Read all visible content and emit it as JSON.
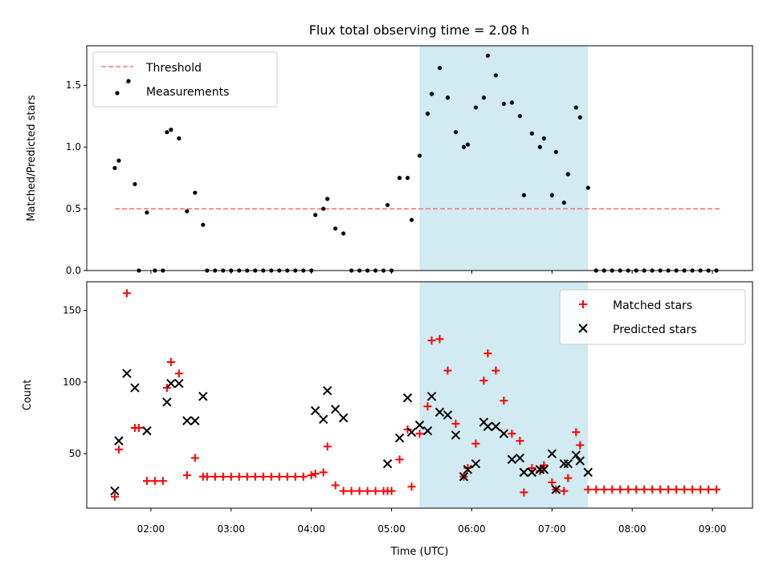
{
  "chart_data": [
    {
      "type": "scatter",
      "title": "Flux total observing time = 2.08 h",
      "xlabel": "",
      "ylabel": "Matched/Predicted stars",
      "xlim": [
        "01:12",
        "09:30"
      ],
      "ylim": [
        0,
        1.82
      ],
      "yticks": [
        0.0,
        0.5,
        1.0,
        1.5
      ],
      "ytick_labels": [
        "0.0",
        "0.5",
        "1.0",
        "1.5"
      ],
      "legend": {
        "placement": "upper-left",
        "entries": [
          "Threshold",
          "Measurements"
        ]
      },
      "threshold": {
        "name": "Threshold",
        "value": 0.5,
        "x_start": "01:33",
        "x_end": "09:06",
        "color": "#ff7777",
        "style": "dashed"
      },
      "highlight_span": {
        "x_start": "05:21",
        "x_end": "07:27",
        "color": "#add8e6"
      },
      "series": [
        {
          "name": "Measurements",
          "color": "#000000",
          "marker": "dot",
          "points": [
            [
              "01:33",
              0.83
            ],
            [
              "01:36",
              0.89
            ],
            [
              "01:42",
              1.52
            ],
            [
              "01:48",
              0.7
            ],
            [
              "01:51",
              0.0
            ],
            [
              "01:57",
              0.47
            ],
            [
              "02:03",
              0.0
            ],
            [
              "02:09",
              0.0
            ],
            [
              "02:12",
              1.12
            ],
            [
              "02:15",
              1.14
            ],
            [
              "02:21",
              1.07
            ],
            [
              "02:27",
              0.48
            ],
            [
              "02:33",
              0.63
            ],
            [
              "02:39",
              0.37
            ],
            [
              "02:42",
              0.0
            ],
            [
              "02:48",
              0.0
            ],
            [
              "02:54",
              0.0
            ],
            [
              "03:00",
              0.0
            ],
            [
              "03:06",
              0.0
            ],
            [
              "03:12",
              0.0
            ],
            [
              "03:18",
              0.0
            ],
            [
              "03:24",
              0.0
            ],
            [
              "03:30",
              0.0
            ],
            [
              "03:36",
              0.0
            ],
            [
              "03:42",
              0.0
            ],
            [
              "03:48",
              0.0
            ],
            [
              "03:54",
              0.0
            ],
            [
              "04:00",
              0.0
            ],
            [
              "04:03",
              0.45
            ],
            [
              "04:09",
              0.5
            ],
            [
              "04:12",
              0.58
            ],
            [
              "04:18",
              0.34
            ],
            [
              "04:24",
              0.3
            ],
            [
              "04:30",
              0.0
            ],
            [
              "04:36",
              0.0
            ],
            [
              "04:42",
              0.0
            ],
            [
              "04:48",
              0.0
            ],
            [
              "04:54",
              0.0
            ],
            [
              "04:57",
              0.53
            ],
            [
              "05:00",
              0.0
            ],
            [
              "05:06",
              0.75
            ],
            [
              "05:12",
              0.75
            ],
            [
              "05:15",
              0.41
            ],
            [
              "05:21",
              0.93
            ],
            [
              "05:27",
              1.27
            ],
            [
              "05:30",
              1.43
            ],
            [
              "05:36",
              1.64
            ],
            [
              "05:42",
              1.4
            ],
            [
              "05:48",
              1.12
            ],
            [
              "05:54",
              1.0
            ],
            [
              "05:57",
              1.02
            ],
            [
              "06:03",
              1.32
            ],
            [
              "06:09",
              1.4
            ],
            [
              "06:12",
              1.74
            ],
            [
              "06:18",
              1.58
            ],
            [
              "06:24",
              1.35
            ],
            [
              "06:30",
              1.36
            ],
            [
              "06:36",
              1.25
            ],
            [
              "06:39",
              0.61
            ],
            [
              "06:45",
              1.11
            ],
            [
              "06:51",
              1.0
            ],
            [
              "06:54",
              1.07
            ],
            [
              "07:00",
              0.61
            ],
            [
              "07:03",
              0.96
            ],
            [
              "07:09",
              0.55
            ],
            [
              "07:12",
              0.78
            ],
            [
              "07:18",
              1.32
            ],
            [
              "07:21",
              1.24
            ],
            [
              "07:27",
              0.67
            ],
            [
              "07:33",
              0.0
            ],
            [
              "07:39",
              0.0
            ],
            [
              "07:45",
              0.0
            ],
            [
              "07:51",
              0.0
            ],
            [
              "07:57",
              0.0
            ],
            [
              "08:03",
              0.0
            ],
            [
              "08:09",
              0.0
            ],
            [
              "08:15",
              0.0
            ],
            [
              "08:21",
              0.0
            ],
            [
              "08:27",
              0.0
            ],
            [
              "08:33",
              0.0
            ],
            [
              "08:39",
              0.0
            ],
            [
              "08:45",
              0.0
            ],
            [
              "08:51",
              0.0
            ],
            [
              "08:57",
              0.0
            ],
            [
              "09:03",
              0.0
            ]
          ]
        }
      ]
    },
    {
      "type": "scatter",
      "title": "",
      "xlabel": "Time (UTC)",
      "ylabel": "Count",
      "xlim": [
        "01:12",
        "09:30"
      ],
      "ylim": [
        12,
        170
      ],
      "yticks": [
        50,
        100,
        150
      ],
      "ytick_labels": [
        "50",
        "100",
        "150"
      ],
      "xticks": [
        "02:00",
        "03:00",
        "04:00",
        "05:00",
        "06:00",
        "07:00",
        "08:00",
        "09:00"
      ],
      "legend": {
        "placement": "upper-right",
        "entries": [
          "Matched stars",
          "Predicted stars"
        ]
      },
      "highlight_span": {
        "x_start": "05:21",
        "x_end": "07:27",
        "color": "#add8e6"
      },
      "series": [
        {
          "name": "Matched stars",
          "color": "#ff0000",
          "marker": "plus",
          "points": [
            [
              "01:33",
              20
            ],
            [
              "01:36",
              53
            ],
            [
              "01:42",
              162
            ],
            [
              "01:48",
              68
            ],
            [
              "01:51",
              68
            ],
            [
              "01:57",
              31
            ],
            [
              "02:03",
              31
            ],
            [
              "02:09",
              31
            ],
            [
              "02:12",
              96
            ],
            [
              "02:15",
              114
            ],
            [
              "02:21",
              106
            ],
            [
              "02:27",
              35
            ],
            [
              "02:33",
              47
            ],
            [
              "02:39",
              34
            ],
            [
              "02:42",
              34
            ],
            [
              "02:48",
              34
            ],
            [
              "02:54",
              34
            ],
            [
              "03:00",
              34
            ],
            [
              "03:06",
              34
            ],
            [
              "03:12",
              34
            ],
            [
              "03:18",
              34
            ],
            [
              "03:24",
              34
            ],
            [
              "03:30",
              34
            ],
            [
              "03:36",
              34
            ],
            [
              "03:42",
              34
            ],
            [
              "03:48",
              34
            ],
            [
              "03:54",
              34
            ],
            [
              "04:00",
              35
            ],
            [
              "04:03",
              36
            ],
            [
              "04:09",
              37
            ],
            [
              "04:12",
              55
            ],
            [
              "04:18",
              28
            ],
            [
              "04:24",
              24
            ],
            [
              "04:30",
              24
            ],
            [
              "04:36",
              24
            ],
            [
              "04:42",
              24
            ],
            [
              "04:48",
              24
            ],
            [
              "04:54",
              24
            ],
            [
              "04:57",
              24
            ],
            [
              "05:00",
              24
            ],
            [
              "05:06",
              46
            ],
            [
              "05:12",
              67
            ],
            [
              "05:15",
              27
            ],
            [
              "05:21",
              64
            ],
            [
              "05:27",
              83
            ],
            [
              "05:30",
              129
            ],
            [
              "05:36",
              130
            ],
            [
              "05:42",
              108
            ],
            [
              "05:48",
              71
            ],
            [
              "05:54",
              34
            ],
            [
              "05:57",
              40
            ],
            [
              "06:03",
              57
            ],
            [
              "06:09",
              101
            ],
            [
              "06:12",
              120
            ],
            [
              "06:18",
              108
            ],
            [
              "06:24",
              87
            ],
            [
              "06:30",
              64
            ],
            [
              "06:36",
              59
            ],
            [
              "06:39",
              23
            ],
            [
              "06:45",
              40
            ],
            [
              "06:51",
              38
            ],
            [
              "06:54",
              42
            ],
            [
              "07:00",
              30
            ],
            [
              "07:03",
              25
            ],
            [
              "07:09",
              24
            ],
            [
              "07:12",
              33
            ],
            [
              "07:18",
              65
            ],
            [
              "07:21",
              56
            ],
            [
              "07:27",
              25
            ],
            [
              "07:33",
              25
            ],
            [
              "07:39",
              25
            ],
            [
              "07:45",
              25
            ],
            [
              "07:51",
              25
            ],
            [
              "07:57",
              25
            ],
            [
              "08:03",
              25
            ],
            [
              "08:09",
              25
            ],
            [
              "08:15",
              25
            ],
            [
              "08:21",
              25
            ],
            [
              "08:27",
              25
            ],
            [
              "08:33",
              25
            ],
            [
              "08:39",
              25
            ],
            [
              "08:45",
              25
            ],
            [
              "08:51",
              25
            ],
            [
              "08:57",
              25
            ],
            [
              "09:03",
              25
            ]
          ]
        },
        {
          "name": "Predicted stars",
          "color": "#000000",
          "marker": "x",
          "points": [
            [
              "01:33",
              24
            ],
            [
              "01:36",
              59
            ],
            [
              "01:42",
              106
            ],
            [
              "01:48",
              96
            ],
            [
              "01:57",
              66
            ],
            [
              "02:12",
              86
            ],
            [
              "02:15",
              99
            ],
            [
              "02:21",
              99
            ],
            [
              "02:27",
              73
            ],
            [
              "02:33",
              73
            ],
            [
              "02:39",
              90
            ],
            [
              "04:03",
              80
            ],
            [
              "04:09",
              74
            ],
            [
              "04:12",
              94
            ],
            [
              "04:18",
              81
            ],
            [
              "04:24",
              75
            ],
            [
              "04:57",
              43
            ],
            [
              "05:06",
              61
            ],
            [
              "05:12",
              89
            ],
            [
              "05:15",
              65
            ],
            [
              "05:21",
              70
            ],
            [
              "05:27",
              66
            ],
            [
              "05:30",
              90
            ],
            [
              "05:36",
              79
            ],
            [
              "05:42",
              77
            ],
            [
              "05:48",
              63
            ],
            [
              "05:54",
              34
            ],
            [
              "05:57",
              39
            ],
            [
              "06:03",
              43
            ],
            [
              "06:09",
              72
            ],
            [
              "06:12",
              69
            ],
            [
              "06:18",
              69
            ],
            [
              "06:24",
              64
            ],
            [
              "06:30",
              46
            ],
            [
              "06:36",
              47
            ],
            [
              "06:39",
              37
            ],
            [
              "06:45",
              37
            ],
            [
              "06:51",
              39
            ],
            [
              "06:54",
              39
            ],
            [
              "07:00",
              50
            ],
            [
              "07:03",
              25
            ],
            [
              "07:09",
              43
            ],
            [
              "07:12",
              43
            ],
            [
              "07:18",
              49
            ],
            [
              "07:21",
              45
            ],
            [
              "07:27",
              37
            ]
          ]
        }
      ]
    }
  ]
}
